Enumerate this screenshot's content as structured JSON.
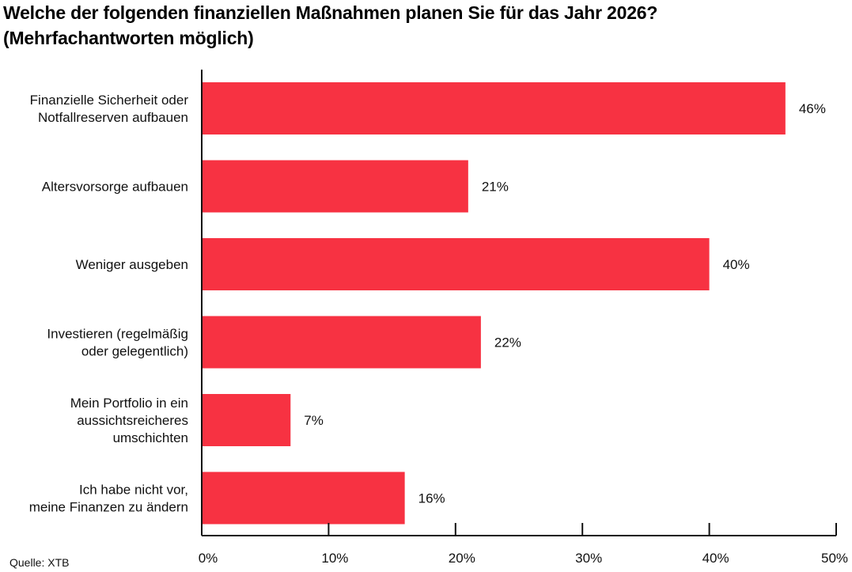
{
  "chart_data": {
    "type": "bar",
    "orientation": "horizontal",
    "title": "Welche der folgenden finanziellen Maßnahmen planen Sie für das Jahr 2026? (Mehrfachantworten möglich)",
    "title_lines": [
      "Welche der folgenden finanziellen Maßnahmen planen Sie für das Jahr 2026?",
      "(Mehrfachantworten möglich)"
    ],
    "categories": [
      [
        "Finanzielle Sicherheit oder",
        "Notfallreserven aufbauen"
      ],
      [
        "Altersvorsorge aufbauen"
      ],
      [
        "Weniger ausgeben"
      ],
      [
        "Investieren (regelmäßig",
        "oder gelegentlich)"
      ],
      [
        "Mein Portfolio in ein",
        "aussichtsreicheres",
        "umschichten"
      ],
      [
        "Ich habe nicht vor,",
        "meine Finanzen zu ändern"
      ]
    ],
    "values": [
      46,
      21,
      40,
      22,
      7,
      16
    ],
    "value_labels": [
      "46%",
      "21%",
      "40%",
      "22%",
      "7%",
      "16%"
    ],
    "xlabel": "",
    "ylabel": "",
    "xlim": [
      0,
      50
    ],
    "xticks": [
      0,
      10,
      20,
      30,
      40,
      50
    ],
    "xtick_labels": [
      "0%",
      "10%",
      "20%",
      "30%",
      "40%",
      "50%"
    ],
    "grid": false,
    "bar_color": "#F73242",
    "legend": "none"
  },
  "source": "Quelle: XTB"
}
